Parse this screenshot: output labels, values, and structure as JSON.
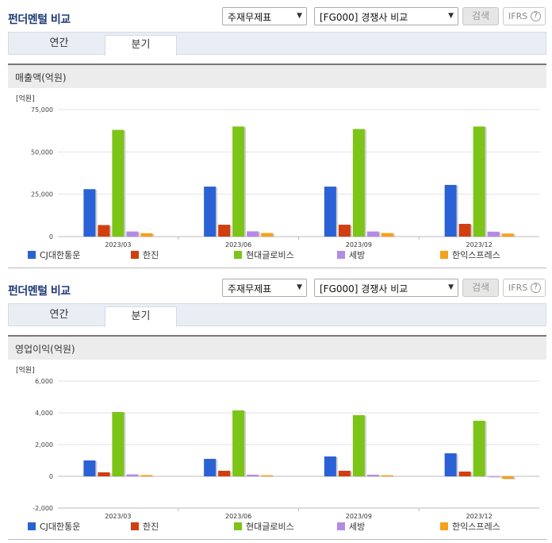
{
  "panels": [
    {
      "title": "펀더멘털 비교",
      "select_a": "주재무제표",
      "select_b": "[FG000] 경쟁사 비교",
      "search_label": "검색",
      "ifrs_label": "IFRS",
      "help_label": "?",
      "tabs": [
        "연간",
        "분기"
      ],
      "active_tab": "분기",
      "metric_title": "매출액(억원)"
    },
    {
      "title": "펀더멘털 비교",
      "select_a": "주재무제표",
      "select_b": "[FG000] 경쟁사 비교",
      "search_label": "검색",
      "ifrs_label": "IFRS",
      "help_label": "?",
      "tabs": [
        "연간",
        "분기"
      ],
      "active_tab": "분기",
      "metric_title": "영업이익(억원)"
    }
  ],
  "colors": {
    "CJ대한통운": "#2a62d6",
    "한진": "#d13f10",
    "현대글로비스": "#7cc418",
    "세방": "#b58ae6",
    "한익스프레스": "#f6a11a"
  },
  "chart_data": [
    {
      "type": "bar",
      "title": "매출액(억원)",
      "unit_label": "[억원]",
      "categories": [
        "2023/03",
        "2023/06",
        "2023/09",
        "2023/12"
      ],
      "ylim": [
        0,
        75000
      ],
      "yticks": [
        0,
        25000,
        50000,
        75000
      ],
      "ytick_labels": [
        "0",
        "25,000",
        "50,000",
        "75,000"
      ],
      "series": [
        {
          "name": "CJ대한통운",
          "values": [
            28000,
            29500,
            29500,
            30500
          ]
        },
        {
          "name": "한진",
          "values": [
            6800,
            7000,
            7000,
            7500
          ]
        },
        {
          "name": "현대글로비스",
          "values": [
            63000,
            65000,
            63500,
            65000
          ]
        },
        {
          "name": "세방",
          "values": [
            3000,
            3100,
            3000,
            2900
          ]
        },
        {
          "name": "한익스프레스",
          "values": [
            2000,
            2100,
            2100,
            1800
          ]
        }
      ],
      "legend": "bottom"
    },
    {
      "type": "bar",
      "title": "영업이익(억원)",
      "unit_label": "[억원]",
      "categories": [
        "2023/03",
        "2023/06",
        "2023/09",
        "2023/12"
      ],
      "ylim": [
        -2000,
        6000
      ],
      "yticks": [
        -2000,
        0,
        2000,
        4000,
        6000
      ],
      "ytick_labels": [
        "-2,000",
        "0",
        "2,000",
        "4,000",
        "6,000"
      ],
      "series": [
        {
          "name": "CJ대한통운",
          "values": [
            1000,
            1100,
            1250,
            1450
          ]
        },
        {
          "name": "한진",
          "values": [
            250,
            350,
            350,
            300
          ]
        },
        {
          "name": "현대글로비스",
          "values": [
            4050,
            4150,
            3850,
            3500
          ]
        },
        {
          "name": "세방",
          "values": [
            120,
            100,
            100,
            20
          ]
        },
        {
          "name": "한익스프레스",
          "values": [
            80,
            70,
            70,
            -150
          ]
        }
      ],
      "legend": "bottom"
    }
  ]
}
